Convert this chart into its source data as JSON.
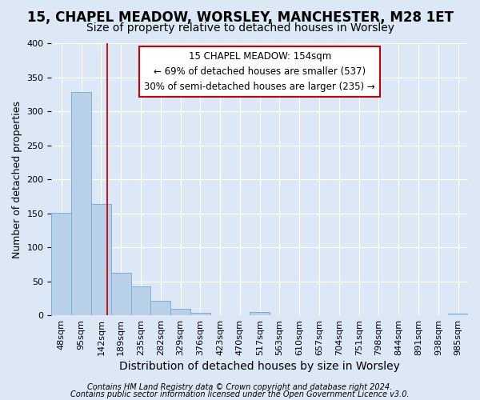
{
  "title1": "15, CHAPEL MEADOW, WORSLEY, MANCHESTER, M28 1ET",
  "title2": "Size of property relative to detached houses in Worsley",
  "xlabel": "Distribution of detached houses by size in Worsley",
  "ylabel": "Number of detached properties",
  "categories": [
    "48sqm",
    "95sqm",
    "142sqm",
    "189sqm",
    "235sqm",
    "282sqm",
    "329sqm",
    "376sqm",
    "423sqm",
    "470sqm",
    "517sqm",
    "563sqm",
    "610sqm",
    "657sqm",
    "704sqm",
    "751sqm",
    "798sqm",
    "844sqm",
    "891sqm",
    "938sqm",
    "985sqm"
  ],
  "values": [
    151,
    328,
    163,
    63,
    42,
    21,
    9,
    4,
    0,
    0,
    5,
    0,
    0,
    0,
    0,
    0,
    0,
    0,
    0,
    0,
    3
  ],
  "bar_color": "#b8d0e8",
  "bar_edge_color": "#7aafd4",
  "red_line_x": 2.32,
  "annotation_line1": "15 CHAPEL MEADOW: 154sqm",
  "annotation_line2": "← 69% of detached houses are smaller (537)",
  "annotation_line3": "30% of semi-detached houses are larger (235) →",
  "annotation_box_color": "#ffffff",
  "annotation_box_edge": "#cc0000",
  "background_color": "#dce8f5",
  "grid_color": "#ffffff",
  "footer1": "Contains HM Land Registry data © Crown copyright and database right 2024.",
  "footer2": "Contains public sector information licensed under the Open Government Licence v3.0.",
  "ylim": [
    0,
    400
  ],
  "yticks": [
    0,
    50,
    100,
    150,
    200,
    250,
    300,
    350,
    400
  ],
  "title1_fontsize": 12,
  "title2_fontsize": 10,
  "ylabel_fontsize": 9,
  "xlabel_fontsize": 10,
  "tick_fontsize": 8,
  "annotation_fontsize": 8.5,
  "footer_fontsize": 7
}
